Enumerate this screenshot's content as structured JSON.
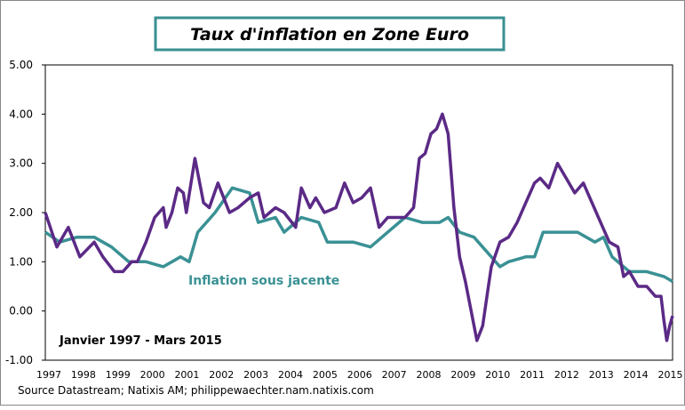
{
  "chart_data": {
    "type": "line",
    "title": "Taux d'inflation en Zone Euro",
    "ylim": [
      -1,
      5
    ],
    "yticks": [
      "5.00",
      "4.00",
      "3.00",
      "2.00",
      "1.00",
      "0.00",
      "-1.00"
    ],
    "xticks": [
      "1997",
      "1998",
      "1999",
      "2000",
      "2001",
      "2002",
      "2003",
      "2004",
      "2005",
      "2006",
      "2007",
      "2008",
      "2009",
      "2010",
      "2011",
      "2012",
      "2013",
      "2014",
      "2015"
    ],
    "period_note": "Janvier 1997 - Mars 2015",
    "source": "Source Datastream; Natixis AM; philippewaechter.nam.natixis.com",
    "grid": false,
    "series": [
      {
        "color": "#5b2a86",
        "points": [
          [
            "1997-01",
            2.0
          ],
          [
            "1997-05",
            1.3
          ],
          [
            "1997-09",
            1.7
          ],
          [
            "1998-01",
            1.1
          ],
          [
            "1998-06",
            1.4
          ],
          [
            "1998-09",
            1.1
          ],
          [
            "1999-01",
            0.8
          ],
          [
            "1999-04",
            0.8
          ],
          [
            "1999-07",
            1.0
          ],
          [
            "1999-09",
            1.0
          ],
          [
            "1999-12",
            1.4
          ],
          [
            "2000-03",
            1.9
          ],
          [
            "2000-06",
            2.1
          ],
          [
            "2000-07",
            1.7
          ],
          [
            "2000-09",
            2.0
          ],
          [
            "2000-11",
            2.5
          ],
          [
            "2001-01",
            2.4
          ],
          [
            "2001-02",
            2.0
          ],
          [
            "2001-05",
            3.1
          ],
          [
            "2001-08",
            2.2
          ],
          [
            "2001-10",
            2.1
          ],
          [
            "2002-01",
            2.6
          ],
          [
            "2002-05",
            2.0
          ],
          [
            "2002-08",
            2.1
          ],
          [
            "2002-12",
            2.3
          ],
          [
            "2003-03",
            2.4
          ],
          [
            "2003-05",
            1.9
          ],
          [
            "2003-09",
            2.1
          ],
          [
            "2003-12",
            2.0
          ],
          [
            "2004-04",
            1.7
          ],
          [
            "2004-06",
            2.5
          ],
          [
            "2004-09",
            2.1
          ],
          [
            "2004-11",
            2.3
          ],
          [
            "2005-02",
            2.0
          ],
          [
            "2005-06",
            2.1
          ],
          [
            "2005-09",
            2.6
          ],
          [
            "2005-12",
            2.2
          ],
          [
            "2006-03",
            2.3
          ],
          [
            "2006-06",
            2.5
          ],
          [
            "2006-09",
            1.7
          ],
          [
            "2006-12",
            1.9
          ],
          [
            "2007-03",
            1.9
          ],
          [
            "2007-06",
            1.9
          ],
          [
            "2007-09",
            2.1
          ],
          [
            "2007-11",
            3.1
          ],
          [
            "2008-01",
            3.2
          ],
          [
            "2008-03",
            3.6
          ],
          [
            "2008-05",
            3.7
          ],
          [
            "2008-07",
            4.0
          ],
          [
            "2008-09",
            3.6
          ],
          [
            "2008-11",
            2.1
          ],
          [
            "2009-01",
            1.1
          ],
          [
            "2009-03",
            0.6
          ],
          [
            "2009-05",
            0.0
          ],
          [
            "2009-07",
            -0.6
          ],
          [
            "2009-09",
            -0.3
          ],
          [
            "2009-11",
            0.5
          ],
          [
            "2009-12",
            0.9
          ],
          [
            "2010-03",
            1.4
          ],
          [
            "2010-06",
            1.5
          ],
          [
            "2010-09",
            1.8
          ],
          [
            "2010-12",
            2.2
          ],
          [
            "2011-03",
            2.6
          ],
          [
            "2011-05",
            2.7
          ],
          [
            "2011-08",
            2.5
          ],
          [
            "2011-11",
            3.0
          ],
          [
            "2012-02",
            2.7
          ],
          [
            "2012-05",
            2.4
          ],
          [
            "2012-08",
            2.6
          ],
          [
            "2012-11",
            2.2
          ],
          [
            "2013-02",
            1.8
          ],
          [
            "2013-05",
            1.4
          ],
          [
            "2013-08",
            1.3
          ],
          [
            "2013-10",
            0.7
          ],
          [
            "2013-12",
            0.8
          ],
          [
            "2014-03",
            0.5
          ],
          [
            "2014-06",
            0.5
          ],
          [
            "2014-09",
            0.3
          ],
          [
            "2014-11",
            0.3
          ],
          [
            "2014-12",
            -0.2
          ],
          [
            "2015-01",
            -0.6
          ],
          [
            "2015-02",
            -0.3
          ],
          [
            "2015-03",
            -0.1
          ]
        ]
      },
      {
        "name": "Inflation sous jacente",
        "color": "#3a9194",
        "points": [
          [
            "1997-01",
            1.6
          ],
          [
            "1997-06",
            1.4
          ],
          [
            "1997-12",
            1.5
          ],
          [
            "1998-06",
            1.5
          ],
          [
            "1998-12",
            1.3
          ],
          [
            "1999-06",
            1.0
          ],
          [
            "1999-12",
            1.0
          ],
          [
            "2000-06",
            0.9
          ],
          [
            "2000-12",
            1.1
          ],
          [
            "2001-03",
            1.0
          ],
          [
            "2001-06",
            1.6
          ],
          [
            "2001-12",
            2.0
          ],
          [
            "2002-06",
            2.5
          ],
          [
            "2002-12",
            2.4
          ],
          [
            "2003-03",
            1.8
          ],
          [
            "2003-09",
            1.9
          ],
          [
            "2003-12",
            1.6
          ],
          [
            "2004-06",
            1.9
          ],
          [
            "2004-12",
            1.8
          ],
          [
            "2005-03",
            1.4
          ],
          [
            "2005-06",
            1.4
          ],
          [
            "2005-12",
            1.4
          ],
          [
            "2006-06",
            1.3
          ],
          [
            "2006-12",
            1.6
          ],
          [
            "2007-06",
            1.9
          ],
          [
            "2007-12",
            1.8
          ],
          [
            "2008-06",
            1.8
          ],
          [
            "2008-09",
            1.9
          ],
          [
            "2009-01",
            1.6
          ],
          [
            "2009-06",
            1.5
          ],
          [
            "2009-12",
            1.1
          ],
          [
            "2010-03",
            0.9
          ],
          [
            "2010-06",
            1.0
          ],
          [
            "2010-12",
            1.1
          ],
          [
            "2011-03",
            1.1
          ],
          [
            "2011-06",
            1.6
          ],
          [
            "2011-12",
            1.6
          ],
          [
            "2012-06",
            1.6
          ],
          [
            "2012-12",
            1.4
          ],
          [
            "2013-03",
            1.5
          ],
          [
            "2013-06",
            1.1
          ],
          [
            "2013-12",
            0.8
          ],
          [
            "2014-06",
            0.8
          ],
          [
            "2014-12",
            0.7
          ],
          [
            "2015-03",
            0.6
          ]
        ]
      }
    ]
  }
}
